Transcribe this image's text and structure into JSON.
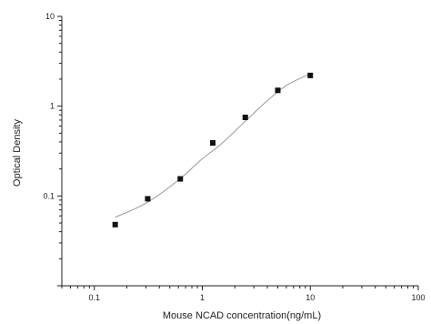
{
  "chart_data": {
    "type": "scatter",
    "xlabel": "Mouse NCAD concentration(ng/mL)",
    "ylabel": "Optical Density",
    "xscale": "log",
    "yscale": "log",
    "xlim": [
      0.05,
      100
    ],
    "ylim": [
      0.01,
      10
    ],
    "x_ticks": [
      {
        "value": 0.1,
        "label": "0.1"
      },
      {
        "value": 1,
        "label": "1"
      },
      {
        "value": 10,
        "label": "10"
      },
      {
        "value": 100,
        "label": "100"
      }
    ],
    "y_ticks": [
      {
        "value": 0.1,
        "label": "0.1"
      },
      {
        "value": 1,
        "label": "1"
      },
      {
        "value": 10,
        "label": "10"
      }
    ],
    "grid": false,
    "legend": "none",
    "series": [
      {
        "marker": "square",
        "x": [
          0.156,
          0.312,
          0.625,
          1.25,
          2.5,
          5,
          10
        ],
        "y": [
          0.048,
          0.093,
          0.155,
          0.39,
          0.75,
          1.5,
          2.2
        ]
      }
    ],
    "fit_curve": {
      "x": [
        0.156,
        0.3,
        0.6,
        1.0,
        1.5,
        2.5,
        4.0,
        6.0,
        10
      ],
      "y": [
        0.058,
        0.083,
        0.15,
        0.26,
        0.38,
        0.68,
        1.15,
        1.7,
        2.3
      ]
    },
    "colors": {
      "axis": "#222222",
      "marker": "#111111",
      "curve": "#999999"
    }
  }
}
